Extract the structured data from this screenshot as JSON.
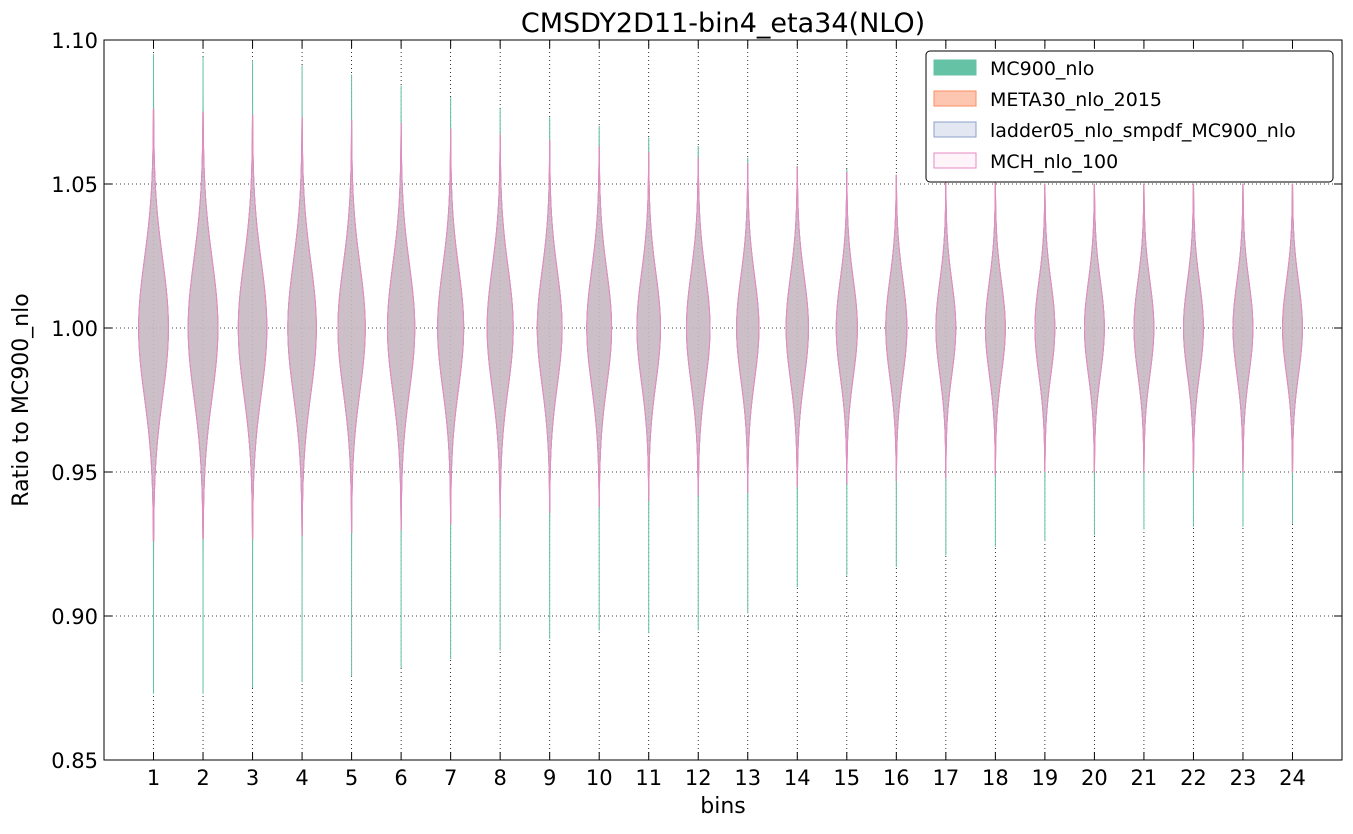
{
  "chart_data": {
    "type": "violin",
    "title": "CMSDY2D11-bin4_eta34(NLO)",
    "xlabel": "bins",
    "ylabel": "Ratio to MC900_nlo",
    "ylim": [
      0.85,
      1.1
    ],
    "xlim": [
      0,
      25
    ],
    "yticks": [
      "0.85",
      "0.90",
      "0.95",
      "1.00",
      "1.05",
      "1.10"
    ],
    "ytick_values": [
      0.85,
      0.9,
      0.95,
      1.0,
      1.05,
      1.1
    ],
    "categories": [
      "1",
      "2",
      "3",
      "4",
      "5",
      "6",
      "7",
      "8",
      "9",
      "10",
      "11",
      "12",
      "13",
      "14",
      "15",
      "16",
      "17",
      "18",
      "19",
      "20",
      "21",
      "22",
      "23",
      "24"
    ],
    "grid": true,
    "legend_position": "top-right",
    "series": [
      {
        "name": "MC900_nlo",
        "color": "#66c2a5",
        "edge": "#66c2a5",
        "min": [
          0.873,
          0.873,
          0.875,
          0.877,
          0.879,
          0.882,
          0.885,
          0.888,
          0.892,
          0.895,
          0.894,
          0.895,
          0.901,
          0.91,
          0.914,
          0.917,
          0.921,
          0.924,
          0.926,
          0.928,
          0.93,
          0.931,
          0.931,
          0.932
        ],
        "max": [
          1.095,
          1.094,
          1.093,
          1.091,
          1.088,
          1.084,
          1.08,
          1.076,
          1.073,
          1.07,
          1.066,
          1.063,
          1.059,
          1.056,
          1.055,
          1.053,
          1.052,
          1.051,
          1.05,
          1.05,
          1.05,
          1.05,
          1.05,
          1.05
        ],
        "spread": [
          0.024,
          0.024,
          0.023,
          0.023,
          0.022,
          0.022,
          0.021,
          0.021,
          0.02,
          0.02,
          0.019,
          0.019,
          0.018,
          0.018,
          0.017,
          0.017,
          0.016,
          0.016,
          0.016,
          0.016,
          0.016,
          0.016,
          0.016,
          0.016
        ]
      },
      {
        "name": "META30_nlo_2015",
        "color": "#fc8d62",
        "edge": "#fc8d62",
        "min": [
          0.926,
          0.927,
          0.927,
          0.928,
          0.929,
          0.93,
          0.932,
          0.934,
          0.936,
          0.938,
          0.94,
          0.942,
          0.943,
          0.945,
          0.946,
          0.947,
          0.948,
          0.949,
          0.95,
          0.95,
          0.95,
          0.95,
          0.95,
          0.95
        ],
        "max": [
          1.076,
          1.075,
          1.074,
          1.073,
          1.072,
          1.071,
          1.069,
          1.067,
          1.065,
          1.063,
          1.061,
          1.059,
          1.057,
          1.056,
          1.054,
          1.053,
          1.052,
          1.051,
          1.05,
          1.05,
          1.05,
          1.05,
          1.05,
          1.05
        ],
        "spread": [
          0.024,
          0.024,
          0.023,
          0.023,
          0.022,
          0.022,
          0.021,
          0.021,
          0.02,
          0.02,
          0.019,
          0.019,
          0.018,
          0.018,
          0.017,
          0.017,
          0.016,
          0.016,
          0.016,
          0.016,
          0.016,
          0.016,
          0.016,
          0.016
        ]
      },
      {
        "name": "ladder05_nlo_smpdf_MC900_nlo",
        "color": "#8da0cb",
        "edge": "#8da0cb",
        "min": [
          0.926,
          0.927,
          0.927,
          0.928,
          0.929,
          0.93,
          0.932,
          0.934,
          0.936,
          0.938,
          0.94,
          0.942,
          0.943,
          0.945,
          0.946,
          0.947,
          0.948,
          0.949,
          0.95,
          0.95,
          0.95,
          0.95,
          0.95,
          0.95
        ],
        "max": [
          1.076,
          1.075,
          1.074,
          1.073,
          1.072,
          1.071,
          1.069,
          1.067,
          1.065,
          1.063,
          1.061,
          1.059,
          1.057,
          1.056,
          1.054,
          1.053,
          1.052,
          1.051,
          1.05,
          1.05,
          1.05,
          1.05,
          1.05,
          1.05
        ],
        "spread": [
          0.024,
          0.024,
          0.023,
          0.023,
          0.022,
          0.022,
          0.021,
          0.021,
          0.02,
          0.02,
          0.019,
          0.019,
          0.018,
          0.018,
          0.017,
          0.017,
          0.016,
          0.016,
          0.016,
          0.016,
          0.016,
          0.016,
          0.016,
          0.016
        ]
      },
      {
        "name": "MCH_nlo_100",
        "color": "#fde0ef",
        "edge": "#e78ac3",
        "min": [
          0.926,
          0.927,
          0.927,
          0.928,
          0.929,
          0.93,
          0.932,
          0.934,
          0.936,
          0.938,
          0.94,
          0.942,
          0.943,
          0.945,
          0.946,
          0.947,
          0.948,
          0.949,
          0.95,
          0.95,
          0.95,
          0.95,
          0.95,
          0.95
        ],
        "max": [
          1.076,
          1.075,
          1.074,
          1.073,
          1.072,
          1.071,
          1.069,
          1.067,
          1.065,
          1.063,
          1.061,
          1.059,
          1.057,
          1.056,
          1.054,
          1.053,
          1.052,
          1.051,
          1.05,
          1.05,
          1.05,
          1.05,
          1.05,
          1.05
        ],
        "spread": [
          0.024,
          0.024,
          0.023,
          0.023,
          0.022,
          0.022,
          0.021,
          0.021,
          0.02,
          0.02,
          0.019,
          0.019,
          0.018,
          0.018,
          0.017,
          0.017,
          0.016,
          0.016,
          0.016,
          0.016,
          0.016,
          0.016,
          0.016,
          0.016
        ]
      }
    ]
  }
}
